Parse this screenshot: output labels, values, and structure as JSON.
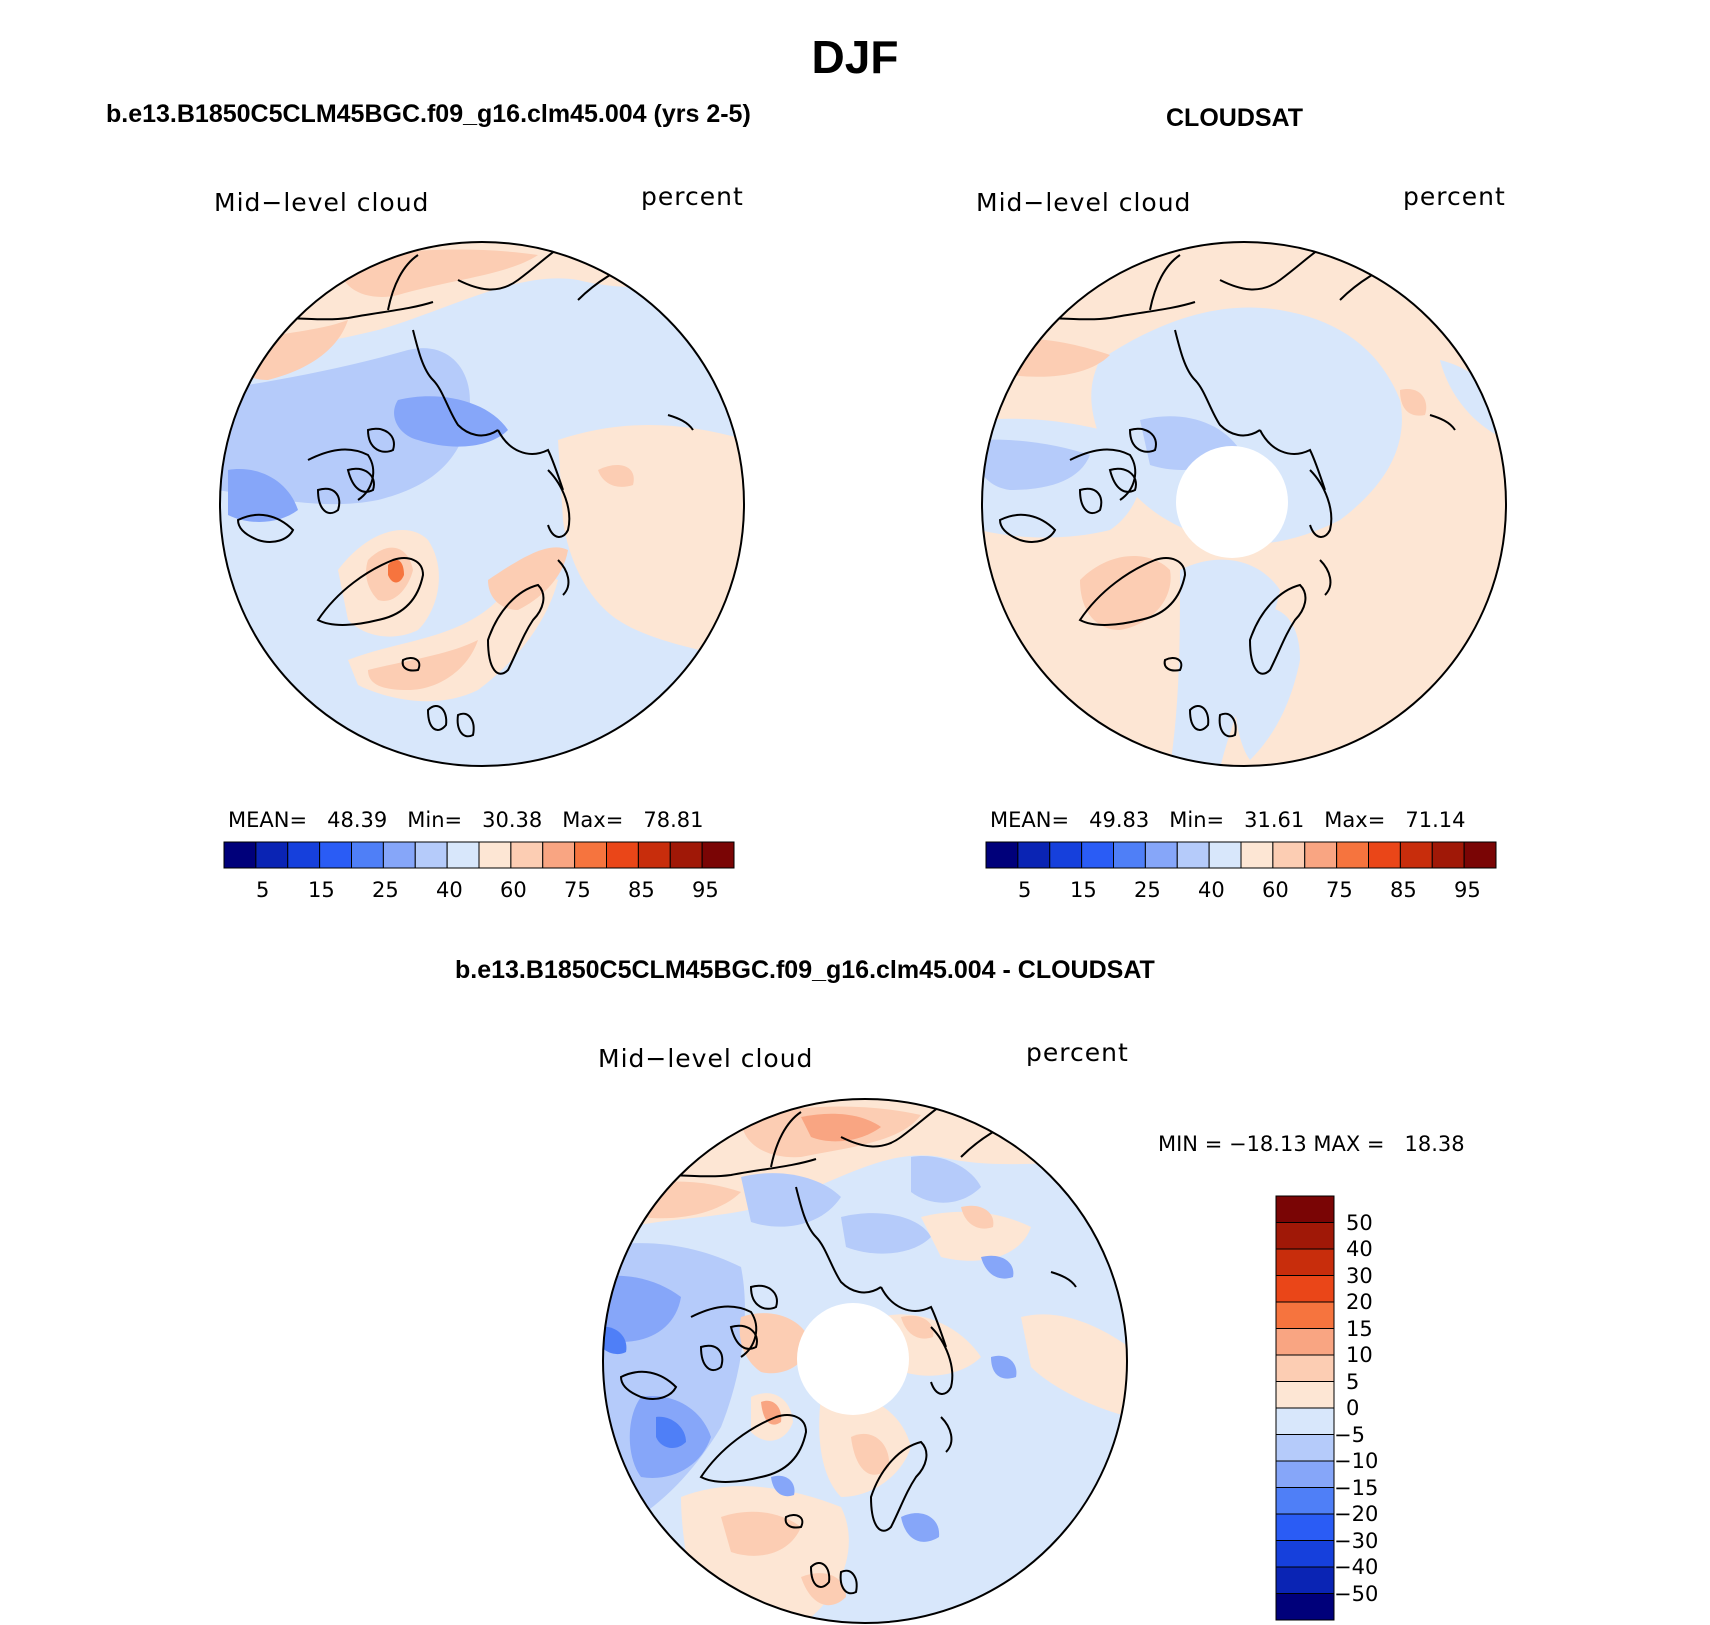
{
  "figure": {
    "title": "DJF"
  },
  "panels": [
    {
      "id": "model",
      "title": "b.e13.B1850C5CLM45BGC.f09_g16.clm45.004 (yrs 2-5)",
      "left_label": "Mid−level cloud",
      "right_label": "percent",
      "stats": {
        "mean_label": "MEAN=",
        "mean": "48.39",
        "min_label": "Min=",
        "min": "30.38",
        "max_label": "Max=",
        "max": "78.81"
      },
      "colorbar_ticks": [
        "5",
        "15",
        "25",
        "40",
        "60",
        "75",
        "85",
        "95"
      ],
      "has_polar_hole": false
    },
    {
      "id": "obs",
      "title": "CLOUDSAT",
      "left_label": "Mid−level cloud",
      "right_label": "percent",
      "stats": {
        "mean_label": "MEAN=",
        "mean": "49.83",
        "min_label": "Min=",
        "min": "31.61",
        "max_label": "Max=",
        "max": "71.14"
      },
      "colorbar_ticks": [
        "5",
        "15",
        "25",
        "40",
        "60",
        "75",
        "85",
        "95"
      ],
      "has_polar_hole": true
    },
    {
      "id": "diff",
      "title": "b.e13.B1850C5CLM45BGC.f09_g16.clm45.004 - CLOUDSAT",
      "left_label": "Mid−level cloud",
      "right_label": "percent",
      "minmax_text": "MIN = −18.13 MAX =   18.38",
      "colorbar_ticks": [
        "50",
        "40",
        "30",
        "20",
        "15",
        "10",
        "5",
        "0",
        "−5",
        "−10",
        "−15",
        "−20",
        "−30",
        "−40",
        "−50"
      ],
      "has_polar_hole": true
    }
  ],
  "colors": {
    "abs_scale": [
      "#00007a",
      "#0a24b4",
      "#1640dc",
      "#2a5cf5",
      "#4f7ff7",
      "#86a6f9",
      "#b5cbfa",
      "#d8e7fb",
      "#fde6d4",
      "#fccdb3",
      "#f9a582",
      "#f6743e",
      "#ea4618",
      "#c82d0c",
      "#a01807",
      "#7a0505"
    ],
    "diff_scale": [
      "#00007a",
      "#0a24b4",
      "#1640dc",
      "#2a5cf5",
      "#4f7ff7",
      "#86a6f9",
      "#b5cbfa",
      "#d8e7fb",
      "#fde6d4",
      "#fccdb3",
      "#f9a582",
      "#f6743e",
      "#ea4618",
      "#c82d0c",
      "#a01807",
      "#7a0505"
    ]
  }
}
